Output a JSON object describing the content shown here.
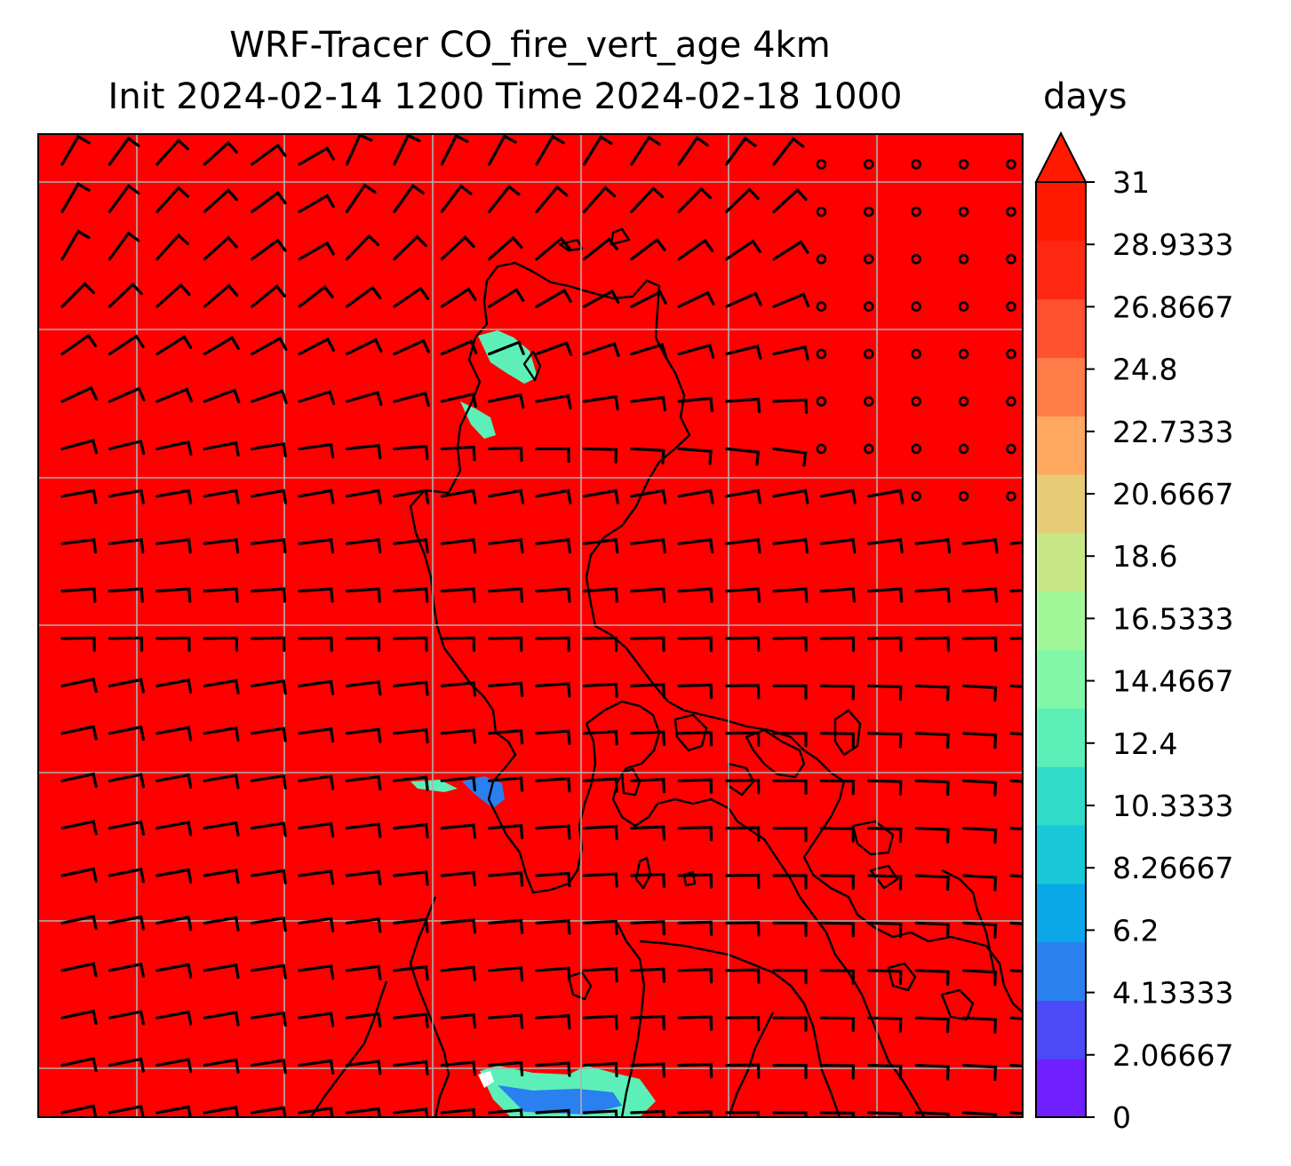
{
  "title": {
    "line1": "WRF-Tracer CO_fire_vert_age 4km",
    "line2": "Init 2024-02-14 1200 Time 2024-02-18 1000"
  },
  "colorbar": {
    "units": "days",
    "extend": "max",
    "tick_labels": [
      "0",
      "2.06667",
      "4.13333",
      "6.2",
      "8.26667",
      "10.3333",
      "12.4",
      "14.4667",
      "16.5333",
      "18.6",
      "20.6667",
      "22.7333",
      "24.8",
      "26.8667",
      "28.9333",
      "31"
    ],
    "colors": [
      "#7020ff",
      "#4a4af8",
      "#2a80ef",
      "#0aa8e8",
      "#18c8d8",
      "#30dcc8",
      "#5cf0b8",
      "#80f8a8",
      "#a2f898",
      "#c8e888",
      "#e6cc76",
      "#ffa860",
      "#ff7c48",
      "#ff5030",
      "#ff2812",
      "#ff1a00"
    ],
    "extend_color": "#ff1a00"
  },
  "map": {
    "background_color": "#ff0000",
    "gridline_color": "#b0b0b0",
    "coastline_color": "#000000",
    "wind_barb_color": "#000000",
    "fill_color_low": "#2a80ef",
    "fill_color_mid": "#5cf0b8"
  }
}
